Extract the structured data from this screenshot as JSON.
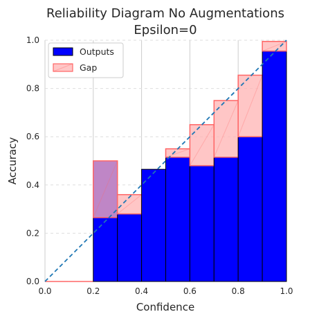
{
  "chart_data": {
    "type": "bar",
    "title_lines": [
      "Reliability Diagram No Augmentations",
      "Epsilon=0"
    ],
    "xlabel": "Confidence",
    "ylabel": "Accuracy",
    "xlim": [
      0.0,
      1.0
    ],
    "ylim": [
      0.0,
      1.0
    ],
    "xticks": [
      "0.0",
      "0.2",
      "0.4",
      "0.6",
      "0.8",
      "1.0"
    ],
    "yticks": [
      "0.0",
      "0.2",
      "0.4",
      "0.6",
      "0.8",
      "1.0"
    ],
    "x_grid": "vertical solid",
    "y_grid": "horizontal dashed",
    "legend_position": "top-left",
    "bin_edges": [
      0.0,
      0.1,
      0.2,
      0.3,
      0.4,
      0.5,
      0.6,
      0.7,
      0.8,
      0.9,
      1.0
    ],
    "series": [
      {
        "name": "Outputs",
        "color": "#0000ff",
        "values": [
          0.0,
          0.0,
          0.5,
          0.28,
          0.465,
          0.515,
          0.48,
          0.515,
          0.6,
          0.955
        ]
      },
      {
        "name": "Gap",
        "color": "#ffb3b3",
        "edge_color": "#ff6666",
        "values": [
          0.0,
          0.0,
          0.265,
          0.36,
          0.465,
          0.55,
          0.65,
          0.75,
          0.855,
          0.995
        ]
      }
    ],
    "reference_line": {
      "label": "perfect calibration",
      "style": "dashed",
      "color": "#1f77b4",
      "from": [
        0.0,
        0.0
      ],
      "to": [
        1.0,
        1.0
      ]
    }
  }
}
